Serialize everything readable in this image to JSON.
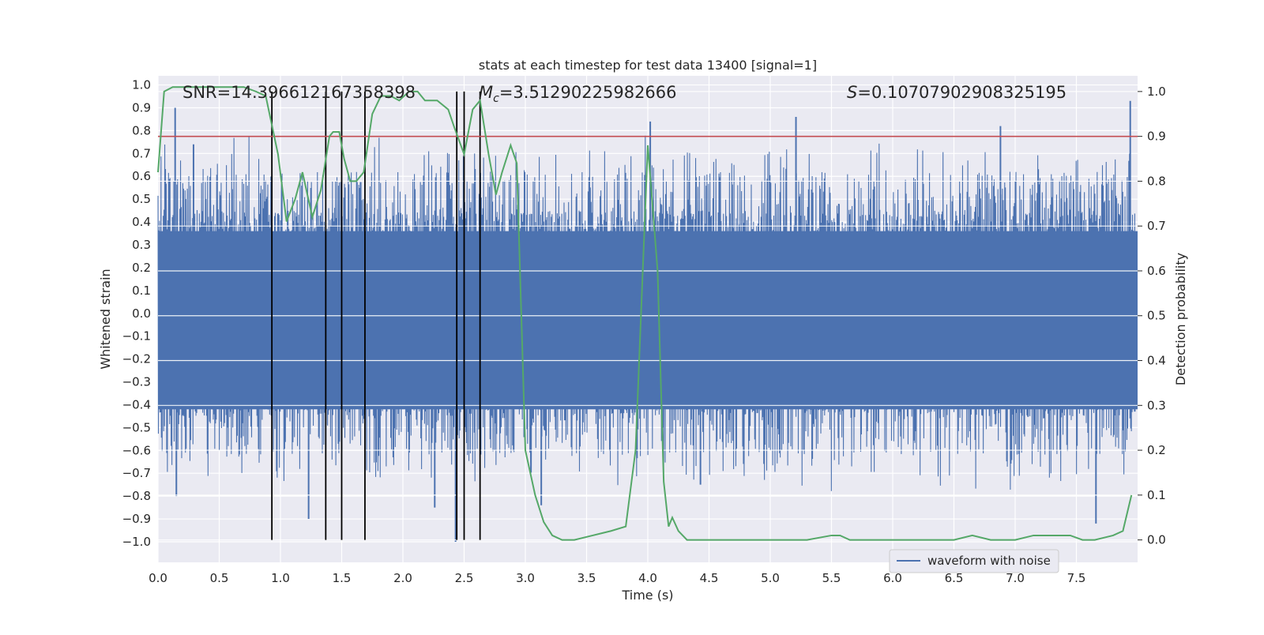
{
  "chart_data": {
    "type": "line",
    "title": "stats at each timestep for test data 13400 [signal=1]",
    "xlabel": "Time (s)",
    "ylabel_left": "Whitened strain",
    "ylabel_right": "Detection probability",
    "xlim": [
      0.0,
      8.0
    ],
    "ylim_left": [
      -1.09,
      1.04
    ],
    "ylim_right": [
      -0.05,
      1.035
    ],
    "x_ticks": [
      0.0,
      0.5,
      1.0,
      1.5,
      2.0,
      2.5,
      3.0,
      3.5,
      4.0,
      4.5,
      5.0,
      5.5,
      6.0,
      6.5,
      7.0,
      7.5
    ],
    "x_tick_labels": [
      "0.0",
      "0.5",
      "1.0",
      "1.5",
      "2.0",
      "2.5",
      "3.0",
      "3.5",
      "4.0",
      "4.5",
      "5.0",
      "5.5",
      "6.0",
      "6.5",
      "7.0",
      "7.5"
    ],
    "y_left_ticks": [
      1.0,
      0.9,
      0.8,
      0.7,
      0.6,
      0.5,
      0.4,
      0.3,
      0.2,
      0.1,
      0.0,
      -0.1,
      -0.2,
      -0.3,
      -0.4,
      -0.5,
      -0.6,
      -0.7,
      -0.8,
      -0.9,
      -1.0
    ],
    "y_left_tick_labels": [
      "1.0",
      "0.9",
      "0.8",
      "0.7",
      "0.6",
      "0.5",
      "0.4",
      "0.3",
      "0.2",
      "0.1",
      "0.0",
      "−0.1",
      "−0.2",
      "−0.3",
      "−0.4",
      "−0.5",
      "−0.6",
      "−0.7",
      "−0.8",
      "−0.9",
      "−1.0"
    ],
    "y_right_ticks": [
      1.0,
      0.9,
      0.8,
      0.7,
      0.6,
      0.5,
      0.4,
      0.3,
      0.2,
      0.1,
      0.0
    ],
    "y_right_tick_labels": [
      "1.0",
      "0.9",
      "0.8",
      "0.7",
      "0.6",
      "0.5",
      "0.4",
      "0.3",
      "0.2",
      "0.1",
      "0.0"
    ],
    "grid": true,
    "legend": {
      "placement": "lower-center-right",
      "entries": [
        {
          "label": "waveform with noise",
          "color": "#4c72b0"
        }
      ]
    },
    "annotations": {
      "snr": {
        "prefix": "SNR=",
        "value": "14.396612167358398"
      },
      "mc": {
        "symbol": "M",
        "subscript": "c",
        "value": "=3.51290225982666"
      },
      "s": {
        "symbol": "S",
        "value": "=0.10707902908325195"
      }
    },
    "threshold": {
      "value": 0.9,
      "axis": "right",
      "color": "#c44e52"
    },
    "event_lines": {
      "x": [
        0.93,
        1.37,
        1.5,
        1.69,
        2.44,
        2.5,
        2.63
      ],
      "color": "#000000",
      "y_range_right": [
        0.0,
        1.0
      ]
    },
    "series": [
      {
        "name": "waveform with noise",
        "axis": "left",
        "color": "#4c72b0",
        "style": "dense-noise",
        "envelope_core": [
          -0.42,
          0.36
        ],
        "notable_spikes": [
          {
            "x": 0.14,
            "y": 0.9
          },
          {
            "x": 0.29,
            "y": 0.74
          },
          {
            "x": 0.15,
            "y": -0.8
          },
          {
            "x": 1.23,
            "y": -0.9
          },
          {
            "x": 2.26,
            "y": -0.85
          },
          {
            "x": 2.43,
            "y": -1.0
          },
          {
            "x": 3.13,
            "y": -0.84
          },
          {
            "x": 4.02,
            "y": 0.84
          },
          {
            "x": 4.43,
            "y": -0.75
          },
          {
            "x": 5.21,
            "y": 0.86
          },
          {
            "x": 6.88,
            "y": 0.82
          },
          {
            "x": 7.66,
            "y": -0.92
          },
          {
            "x": 7.94,
            "y": 0.93
          }
        ]
      },
      {
        "name": "detection probability",
        "axis": "right",
        "color": "#55a868",
        "x": [
          0.0,
          0.05,
          0.12,
          0.3,
          0.5,
          0.7,
          0.8,
          0.88,
          0.98,
          1.05,
          1.12,
          1.18,
          1.26,
          1.33,
          1.4,
          1.43,
          1.48,
          1.52,
          1.57,
          1.62,
          1.68,
          1.75,
          1.82,
          1.9,
          1.97,
          2.05,
          2.12,
          2.18,
          2.28,
          2.37,
          2.42,
          2.5,
          2.57,
          2.63,
          2.7,
          2.76,
          2.81,
          2.88,
          2.93,
          3.0,
          3.08,
          3.15,
          3.22,
          3.3,
          3.4,
          3.55,
          3.7,
          3.82,
          3.9,
          4.0,
          4.08,
          4.13,
          4.17,
          4.2,
          4.25,
          4.32,
          4.38,
          4.5,
          4.7,
          4.9,
          5.1,
          5.3,
          5.5,
          5.57,
          5.65,
          5.8,
          6.0,
          6.2,
          6.35,
          6.5,
          6.65,
          6.8,
          7.0,
          7.15,
          7.35,
          7.45,
          7.55,
          7.65,
          7.8,
          7.88,
          7.95
        ],
        "y": [
          0.82,
          1.0,
          1.01,
          1.01,
          1.01,
          1.01,
          1.0,
          0.99,
          0.86,
          0.71,
          0.76,
          0.82,
          0.72,
          0.78,
          0.9,
          0.91,
          0.91,
          0.85,
          0.8,
          0.8,
          0.82,
          0.95,
          0.99,
          0.99,
          0.98,
          1.0,
          1.0,
          0.98,
          0.98,
          0.96,
          0.92,
          0.86,
          0.96,
          0.98,
          0.86,
          0.77,
          0.82,
          0.88,
          0.84,
          0.2,
          0.1,
          0.04,
          0.01,
          0.0,
          0.0,
          0.01,
          0.02,
          0.03,
          0.2,
          0.88,
          0.6,
          0.13,
          0.03,
          0.05,
          0.02,
          0.0,
          0.0,
          0.0,
          0.0,
          0.0,
          0.0,
          0.0,
          0.01,
          0.01,
          0.0,
          0.0,
          0.0,
          0.0,
          0.0,
          0.0,
          0.01,
          0.0,
          0.0,
          0.01,
          0.01,
          0.01,
          0.0,
          0.0,
          0.01,
          0.02,
          0.1
        ]
      }
    ]
  }
}
